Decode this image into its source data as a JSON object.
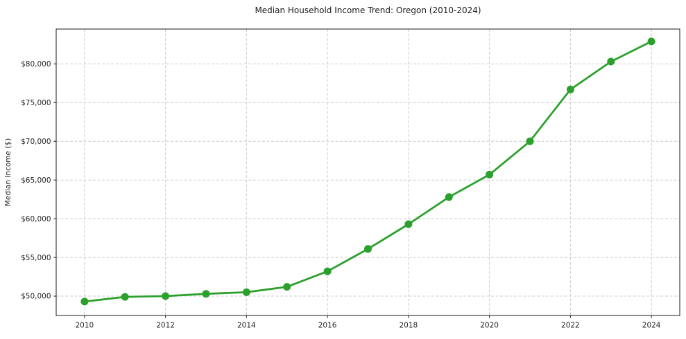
{
  "chart_data": {
    "type": "line",
    "title": "Median Household Income Trend: Oregon (2010-2024)",
    "xlabel": "",
    "ylabel": "Median Income ($)",
    "x": [
      2010,
      2011,
      2012,
      2013,
      2014,
      2015,
      2016,
      2017,
      2018,
      2019,
      2020,
      2021,
      2022,
      2023,
      2024
    ],
    "values": [
      49300,
      49900,
      50000,
      50300,
      50500,
      51200,
      53200,
      56100,
      59300,
      62800,
      65700,
      70000,
      76700,
      80300,
      82900
    ],
    "x_ticks": [
      2010,
      2012,
      2014,
      2016,
      2018,
      2020,
      2022,
      2024
    ],
    "x_tick_labels": [
      "2010",
      "2012",
      "2014",
      "2016",
      "2018",
      "2020",
      "2022",
      "2024"
    ],
    "y_ticks": [
      50000,
      55000,
      60000,
      65000,
      70000,
      75000,
      80000
    ],
    "y_tick_labels": [
      "$50,000",
      "$55,000",
      "$60,000",
      "$65,000",
      "$70,000",
      "$75,000",
      "$80,000"
    ],
    "xlim": [
      2009.3,
      2024.7
    ],
    "ylim": [
      47500,
      84500
    ],
    "grid": true,
    "grid_style": "dashed",
    "legend": false,
    "marker": "circle",
    "colors": {
      "line": "#2ca02c",
      "marker": "#2ca02c",
      "grid": "#cccccc",
      "spine": "#1a1a1a",
      "text": "#262626",
      "background": "#ffffff"
    }
  }
}
